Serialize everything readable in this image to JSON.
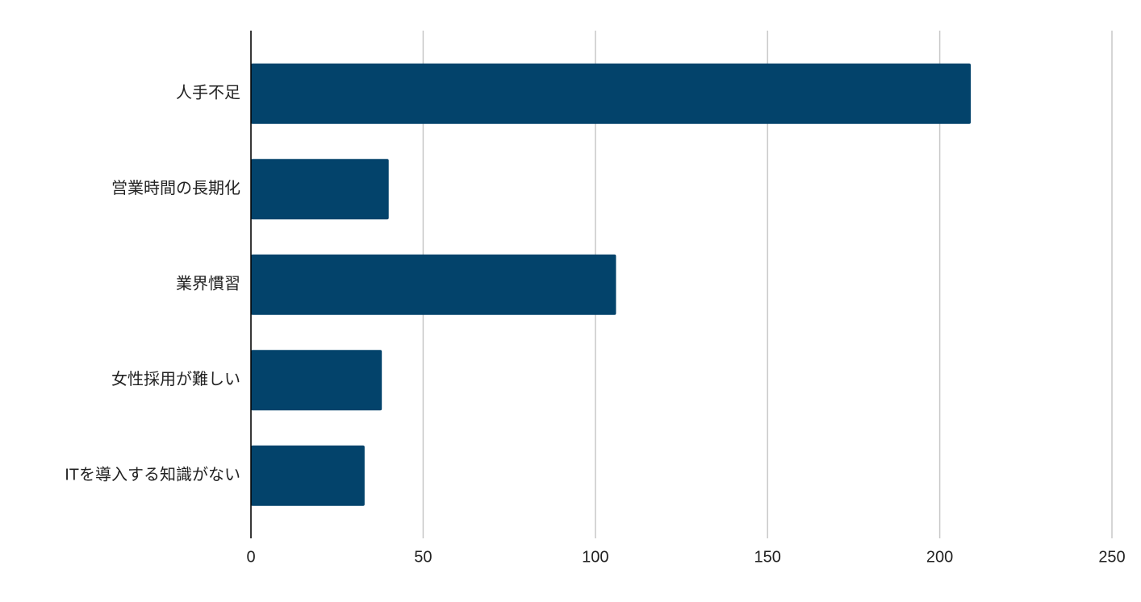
{
  "chart_data": {
    "type": "hbar",
    "categories": [
      "人手不足",
      "営業時間の長期化",
      "業界慣習",
      "女性採用が難しい",
      "ITを導入する知識がない"
    ],
    "values": [
      209,
      40,
      106,
      38,
      33
    ],
    "color": "#03436b",
    "xlim": [
      0,
      250
    ],
    "xticks": [
      0,
      50,
      100,
      150,
      200,
      250
    ],
    "grid": true
  }
}
